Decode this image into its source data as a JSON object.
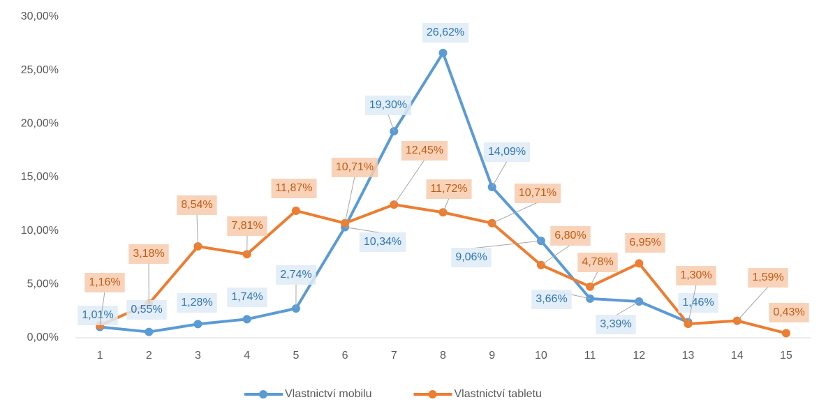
{
  "chart_data": {
    "type": "line",
    "categories": [
      "1",
      "2",
      "3",
      "4",
      "5",
      "6",
      "7",
      "8",
      "9",
      "10",
      "11",
      "12",
      "13",
      "14",
      "15"
    ],
    "series": [
      {
        "name": "Vlastnictví mobilu",
        "color": "#5b9bd5",
        "label_color": "#2e75b6",
        "label_fill": "#deebf7",
        "values": [
          1.01,
          0.55,
          1.28,
          1.74,
          2.74,
          10.34,
          19.3,
          26.62,
          14.09,
          9.06,
          3.66,
          3.39,
          1.46,
          null,
          null
        ],
        "value_labels": [
          "1,01%",
          "0,55%",
          "1,28%",
          "1,74%",
          "2,74%",
          "10,34%",
          "19,30%",
          "26,62%",
          "14,09%",
          "9,06%",
          "3,66%",
          "3,39%",
          "1,46%",
          null,
          null
        ]
      },
      {
        "name": "Vlastnictví tabletu",
        "color": "#ed7d31",
        "label_color": "#c55a11",
        "label_fill": "#f8cbad",
        "values": [
          1.16,
          3.18,
          8.54,
          7.81,
          11.87,
          10.71,
          12.45,
          11.72,
          10.71,
          6.8,
          4.78,
          6.95,
          1.3,
          1.59,
          0.43
        ],
        "value_labels": [
          "1,16%",
          "3,18%",
          "8,54%",
          "7,81%",
          "11,87%",
          "10,71%",
          "12,45%",
          "11,72%",
          "10,71%",
          "6,80%",
          "4,78%",
          "6,95%",
          "1,30%",
          "1,59%",
          "0,43%"
        ]
      }
    ],
    "ylim": [
      0,
      30
    ],
    "yticks": [
      {
        "value": 0,
        "label": "0,00%"
      },
      {
        "value": 5,
        "label": "5,00%"
      },
      {
        "value": 10,
        "label": "10,00%"
      },
      {
        "value": 15,
        "label": "15,00%"
      },
      {
        "value": 20,
        "label": "20,00%"
      },
      {
        "value": 25,
        "label": "25,00%"
      },
      {
        "value": 30,
        "label": "30,00%"
      }
    ],
    "grid": false,
    "legend": "bottom"
  }
}
